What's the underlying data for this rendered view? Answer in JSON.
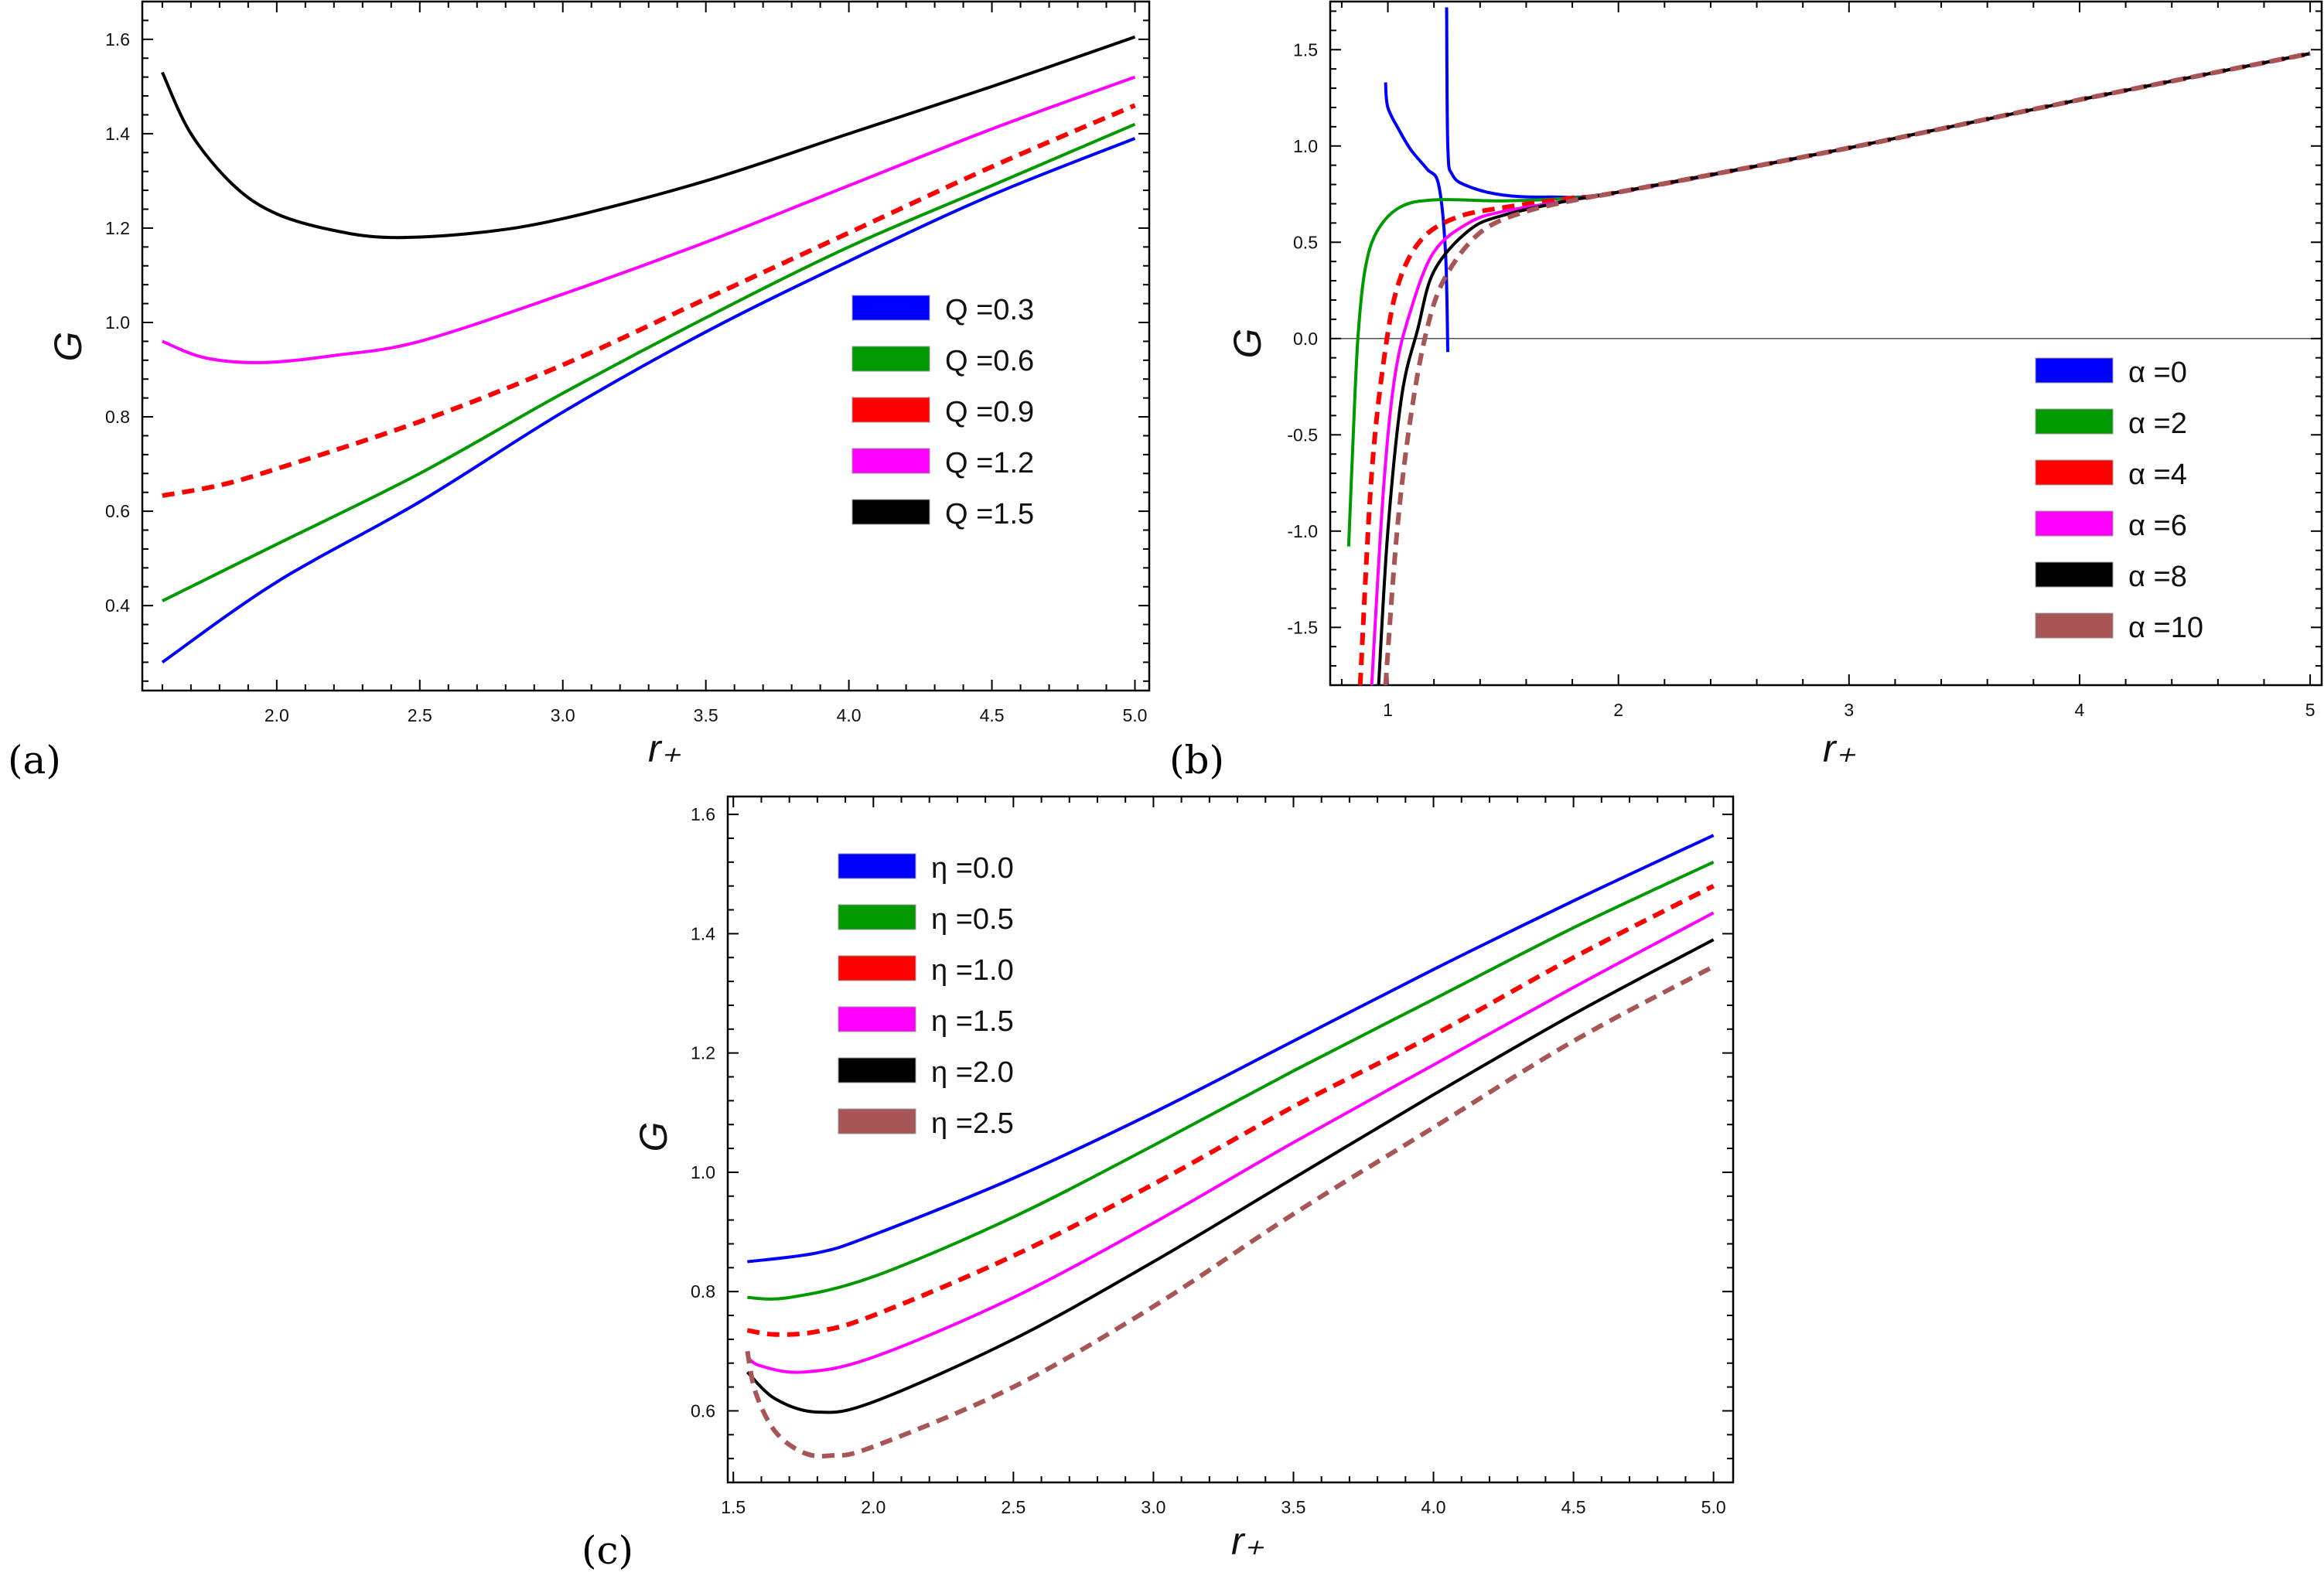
{
  "chart_data": [
    {
      "type": "line",
      "panel_label": "(a)",
      "xlabel": "r₊",
      "ylabel": "G",
      "xlim": [
        1.53,
        5.05
      ],
      "ylim": [
        0.22,
        1.68
      ],
      "xticks": [
        2.0,
        2.5,
        3.0,
        3.5,
        4.0,
        4.5,
        5.0
      ],
      "xtick_labels": [
        "2.0",
        "2.5",
        "3.0",
        "3.5",
        "4.0",
        "4.5",
        "5.0"
      ],
      "yticks": [
        0.4,
        0.6,
        0.8,
        1.0,
        1.2,
        1.4,
        1.6
      ],
      "ytick_labels": [
        "0.4",
        "0.6",
        "0.8",
        "1.0",
        "1.2",
        "1.4",
        "1.6"
      ],
      "legend_position": "right",
      "series": [
        {
          "name": "Q =0.3",
          "color": "#0000ff",
          "dashed": false,
          "x": [
            1.6,
            2.0,
            2.5,
            3.0,
            3.5,
            4.0,
            4.5,
            5.0
          ],
          "y": [
            0.28,
            0.45,
            0.62,
            0.81,
            0.98,
            1.13,
            1.27,
            1.39
          ]
        },
        {
          "name": "Q =0.6",
          "color": "#009900",
          "dashed": false,
          "x": [
            1.6,
            2.0,
            2.5,
            3.0,
            3.5,
            4.0,
            4.5,
            5.0
          ],
          "y": [
            0.41,
            0.53,
            0.68,
            0.85,
            1.01,
            1.16,
            1.29,
            1.42
          ]
        },
        {
          "name": "Q =0.9",
          "color": "#ff0000",
          "dashed": true,
          "x": [
            1.6,
            1.8,
            2.0,
            2.5,
            3.0,
            3.5,
            4.0,
            4.5,
            5.0
          ],
          "y": [
            0.633,
            0.655,
            0.69,
            0.79,
            0.91,
            1.05,
            1.19,
            1.33,
            1.46
          ]
        },
        {
          "name": "Q =1.2",
          "color": "#ff00ff",
          "dashed": false,
          "x": [
            1.6,
            1.75,
            1.95,
            2.2,
            2.5,
            3.0,
            3.5,
            4.0,
            4.5,
            5.0
          ],
          "y": [
            0.96,
            0.925,
            0.915,
            0.93,
            0.96,
            1.06,
            1.17,
            1.29,
            1.41,
            1.52
          ]
        },
        {
          "name": "Q =1.5",
          "color": "#000000",
          "dashed": false,
          "x": [
            1.6,
            1.7,
            1.85,
            2.0,
            2.2,
            2.4,
            2.7,
            3.0,
            3.5,
            4.0,
            4.5,
            5.0
          ],
          "y": [
            1.53,
            1.4,
            1.29,
            1.23,
            1.195,
            1.18,
            1.19,
            1.22,
            1.3,
            1.4,
            1.5,
            1.605
          ]
        }
      ]
    },
    {
      "type": "line",
      "panel_label": "(b)",
      "xlabel": "r₊",
      "ylabel": "G",
      "xlim": [
        0.75,
        5.05
      ],
      "ylim": [
        -1.8,
        1.75
      ],
      "xticks": [
        1,
        2,
        3,
        4,
        5
      ],
      "xtick_labels": [
        "1",
        "2",
        "3",
        "4",
        "5"
      ],
      "yticks": [
        -1.5,
        -1.0,
        -0.5,
        0.0,
        0.5,
        1.0,
        1.5
      ],
      "ytick_labels": [
        "-1.5",
        "-1.0",
        "-0.5",
        "0.0",
        "0.5",
        "1.0",
        "1.5"
      ],
      "zero_line": true,
      "legend_position": "bottom-right",
      "series": [
        {
          "name": "α =0",
          "color": "#0000ff",
          "dashed": false,
          "x": [
            0.99,
            1.0,
            1.05,
            1.1,
            1.17,
            1.22,
            1.25,
            1.26
          ],
          "y": [
            1.33,
            1.2,
            1.08,
            0.98,
            0.88,
            0.8,
            0.45,
            -0.07
          ]
        },
        {
          "name": "",
          "color": "#0000ff",
          "dashed": false,
          "x": [
            1.255,
            1.26,
            1.28,
            1.35,
            1.5,
            1.7,
            2.0,
            3.0,
            4.0,
            5.0
          ],
          "y": [
            1.72,
            1.0,
            0.85,
            0.79,
            0.745,
            0.735,
            0.76,
            0.99,
            1.24,
            1.48
          ]
        },
        {
          "name": "α =2",
          "color": "#009900",
          "dashed": false,
          "x": [
            0.83,
            0.85,
            0.87,
            0.9,
            0.95,
            1.05,
            1.2,
            1.5,
            1.8,
            2.0,
            3.0,
            4.0,
            5.0
          ],
          "y": [
            -1.08,
            -0.5,
            0.0,
            0.35,
            0.55,
            0.68,
            0.72,
            0.715,
            0.73,
            0.76,
            0.99,
            1.24,
            1.48
          ]
        },
        {
          "name": "α =4",
          "color": "#ff0000",
          "dashed": true,
          "x": [
            0.88,
            0.93,
            0.99,
            1.05,
            1.15,
            1.3,
            1.5,
            1.8,
            2.0,
            3.0,
            4.0,
            5.0
          ],
          "y": [
            -1.8,
            -0.7,
            -0.05,
            0.3,
            0.52,
            0.63,
            0.68,
            0.73,
            0.76,
            0.99,
            1.24,
            1.48
          ]
        },
        {
          "name": "α =6",
          "color": "#ff00ff",
          "dashed": false,
          "x": [
            0.93,
            0.98,
            1.03,
            1.1,
            1.2,
            1.35,
            1.5,
            1.8,
            2.0,
            3.0,
            4.0,
            5.0
          ],
          "y": [
            -1.8,
            -0.8,
            -0.2,
            0.15,
            0.45,
            0.6,
            0.66,
            0.72,
            0.76,
            0.99,
            1.24,
            1.48
          ]
        },
        {
          "name": "α =8",
          "color": "#000000",
          "dashed": false,
          "x": [
            0.96,
            1.0,
            1.06,
            1.13,
            1.2,
            1.35,
            1.5,
            1.8,
            2.0,
            3.0,
            4.0,
            5.0
          ],
          "y": [
            -1.8,
            -1.0,
            -0.3,
            0.05,
            0.35,
            0.56,
            0.64,
            0.72,
            0.76,
            0.99,
            1.24,
            1.48
          ]
        },
        {
          "name": "α =10",
          "color": "#a85555",
          "dashed": true,
          "x": [
            0.99,
            1.04,
            1.1,
            1.17,
            1.25,
            1.4,
            1.6,
            1.9,
            2.0,
            3.0,
            4.0,
            5.0
          ],
          "y": [
            -1.8,
            -1.0,
            -0.4,
            0.05,
            0.32,
            0.55,
            0.66,
            0.74,
            0.76,
            0.99,
            1.24,
            1.48
          ]
        }
      ]
    },
    {
      "type": "line",
      "panel_label": "(c)",
      "xlabel": "r₊",
      "ylabel": "G",
      "xlim": [
        1.48,
        5.07
      ],
      "ylim": [
        0.48,
        1.63
      ],
      "xticks": [
        1.5,
        2.0,
        2.5,
        3.0,
        3.5,
        4.0,
        4.5,
        5.0
      ],
      "xtick_labels": [
        "1.5",
        "2.0",
        "2.5",
        "3.0",
        "3.5",
        "4.0",
        "4.5",
        "5.0"
      ],
      "yticks": [
        0.6,
        0.8,
        1.0,
        1.2,
        1.4,
        1.6
      ],
      "ytick_labels": [
        "0.6",
        "0.8",
        "1.0",
        "1.2",
        "1.4",
        "1.6"
      ],
      "legend_position": "top-left",
      "series": [
        {
          "name": "η =0.0",
          "color": "#0000ff",
          "dashed": false,
          "x": [
            1.55,
            1.8,
            2.0,
            2.5,
            3.0,
            3.5,
            4.0,
            4.5,
            5.0
          ],
          "y": [
            0.85,
            0.865,
            0.895,
            0.99,
            1.1,
            1.22,
            1.34,
            1.455,
            1.565
          ]
        },
        {
          "name": "η =0.5",
          "color": "#009900",
          "dashed": false,
          "x": [
            1.55,
            1.7,
            2.0,
            2.5,
            3.0,
            3.5,
            4.0,
            4.5,
            5.0
          ],
          "y": [
            0.79,
            0.79,
            0.825,
            0.925,
            1.045,
            1.17,
            1.29,
            1.41,
            1.52
          ]
        },
        {
          "name": "η =1.0",
          "color": "#ff0000",
          "dashed": true,
          "x": [
            1.55,
            1.65,
            1.8,
            2.0,
            2.5,
            3.0,
            3.5,
            4.0,
            4.5,
            5.0
          ],
          "y": [
            0.735,
            0.728,
            0.733,
            0.76,
            0.86,
            0.98,
            1.11,
            1.23,
            1.36,
            1.48
          ]
        },
        {
          "name": "η =1.5",
          "color": "#ff00ff",
          "dashed": false,
          "x": [
            1.55,
            1.6,
            1.75,
            2.0,
            2.5,
            3.0,
            3.5,
            4.0,
            4.5,
            5.0
          ],
          "y": [
            0.69,
            0.675,
            0.665,
            0.69,
            0.79,
            0.915,
            1.05,
            1.18,
            1.31,
            1.435
          ]
        },
        {
          "name": "η =2.0",
          "color": "#000000",
          "dashed": false,
          "x": [
            1.55,
            1.65,
            1.8,
            2.0,
            2.5,
            3.0,
            3.5,
            4.0,
            4.5,
            5.0
          ],
          "y": [
            0.665,
            0.62,
            0.598,
            0.615,
            0.72,
            0.85,
            0.99,
            1.13,
            1.265,
            1.39
          ]
        },
        {
          "name": "η =2.5",
          "color": "#a85555",
          "dashed": true,
          "x": [
            1.55,
            1.58,
            1.65,
            1.75,
            1.85,
            2.0,
            2.5,
            3.0,
            3.5,
            4.0,
            4.5,
            5.0
          ],
          "y": [
            0.7,
            0.63,
            0.565,
            0.53,
            0.525,
            0.54,
            0.64,
            0.775,
            0.93,
            1.075,
            1.22,
            1.345
          ]
        }
      ]
    }
  ]
}
